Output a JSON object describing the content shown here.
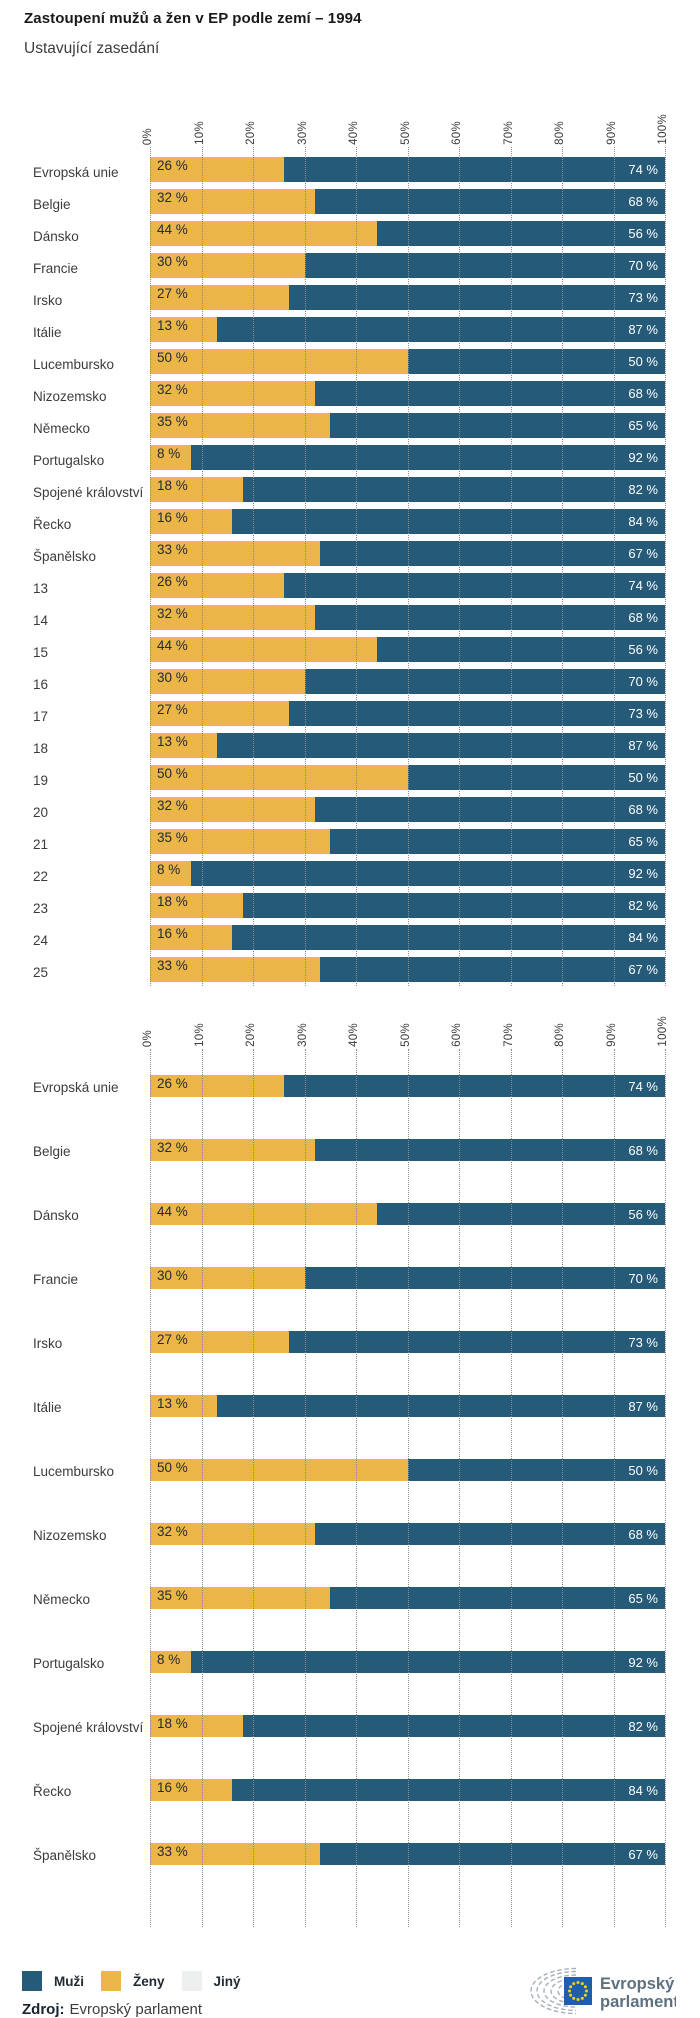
{
  "page": {
    "title": "Zastoupení mužů a žen v EP podle zemí – 1994",
    "subtitle": "Ustavující zasedání"
  },
  "colors": {
    "men": "#255a79",
    "women": "#ebb547",
    "other": "#eef0f0",
    "grid": "#8b8b8b",
    "value_text_dark": "#212b34",
    "value_text_light": "#ffffff"
  },
  "legend": {
    "items": [
      {
        "label": "Muži",
        "color": "#255a79"
      },
      {
        "label": "Ženy",
        "color": "#ebb547"
      },
      {
        "label": "Jiný",
        "color": "#eef0f0"
      }
    ]
  },
  "source": {
    "label": "Zdroj:",
    "value": "Evropský parlament"
  },
  "logo": {
    "line1": "Evropský",
    "line2": "parlament"
  },
  "chart_data": [
    {
      "type": "bar",
      "orientation": "horizontal-stacked",
      "title": "",
      "categories": [
        "Evropská unie",
        "Belgie",
        "Dánsko",
        "Francie",
        "Irsko",
        "Itálie",
        "Lucembursko",
        "Nizozemsko",
        "Německo",
        "Portugalsko",
        "Spojené království",
        "Řecko",
        "Španělsko",
        "13",
        "14",
        "15",
        "16",
        "17",
        "18",
        "19",
        "20",
        "21",
        "22",
        "23",
        "24",
        "25"
      ],
      "series": [
        {
          "name": "Ženy",
          "color": "#ebb547",
          "values": [
            26,
            32,
            44,
            30,
            27,
            13,
            50,
            32,
            35,
            8,
            18,
            16,
            33,
            26,
            32,
            44,
            30,
            27,
            13,
            50,
            32,
            35,
            8,
            18,
            16,
            33
          ]
        },
        {
          "name": "Muži",
          "color": "#255a79",
          "values": [
            74,
            68,
            56,
            70,
            73,
            87,
            50,
            68,
            65,
            92,
            82,
            84,
            67,
            74,
            68,
            56,
            70,
            73,
            87,
            50,
            68,
            65,
            92,
            82,
            84,
            67
          ]
        }
      ],
      "xlim": [
        0,
        100
      ],
      "x_ticks": [
        "0%",
        "10%",
        "20%",
        "30%",
        "40%",
        "50%",
        "60%",
        "70%",
        "80%",
        "90%",
        "100%"
      ],
      "grid": "dotted-vertical",
      "value_label_format": "{v} %"
    },
    {
      "type": "bar",
      "orientation": "horizontal-stacked",
      "title": "",
      "categories": [
        "Evropská unie",
        "Belgie",
        "Dánsko",
        "Francie",
        "Irsko",
        "Itálie",
        "Lucembursko",
        "Nizozemsko",
        "Německo",
        "Portugalsko",
        "Spojené království",
        "Řecko",
        "Španělsko"
      ],
      "series": [
        {
          "name": "Ženy",
          "color": "#ebb547",
          "values": [
            26,
            32,
            44,
            30,
            27,
            13,
            50,
            32,
            35,
            8,
            18,
            16,
            33
          ]
        },
        {
          "name": "Muži",
          "color": "#255a79",
          "values": [
            74,
            68,
            56,
            70,
            73,
            87,
            50,
            68,
            65,
            92,
            82,
            84,
            67
          ]
        }
      ],
      "xlim": [
        0,
        100
      ],
      "x_ticks": [
        "0%",
        "10%",
        "20%",
        "30%",
        "40%",
        "50%",
        "60%",
        "70%",
        "80%",
        "90%",
        "100%"
      ],
      "grid": "dotted-vertical",
      "value_label_format": "{v} %"
    }
  ]
}
